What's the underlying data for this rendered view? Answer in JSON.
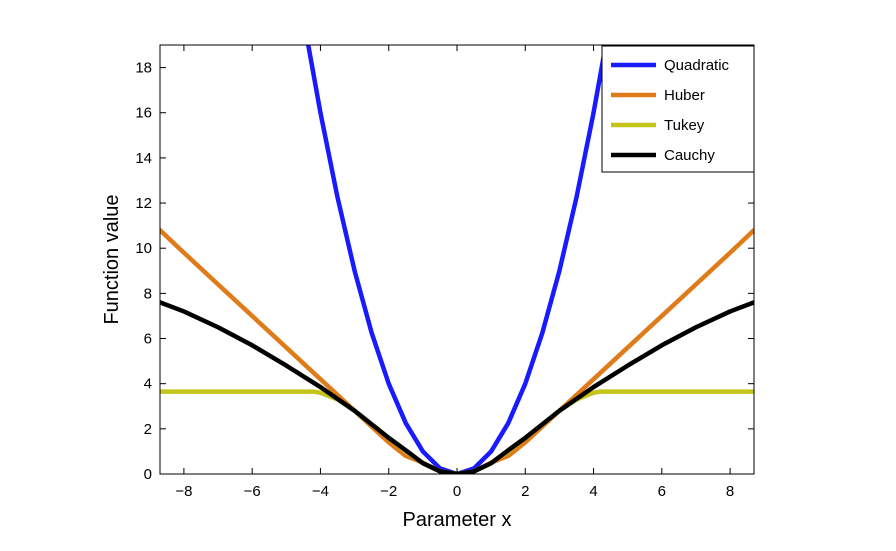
{
  "chart_data": {
    "type": "line",
    "xlabel": "Parameter x",
    "ylabel": "Function value",
    "xlim": [
      -8.7,
      8.7
    ],
    "ylim": [
      0,
      19
    ],
    "xticks": [
      -8,
      -6,
      -4,
      -2,
      0,
      2,
      4,
      6,
      8
    ],
    "xtick_labels": [
      "−8",
      "−6",
      "−4",
      "−2",
      "0",
      "2",
      "4",
      "6",
      "8"
    ],
    "yticks": [
      0,
      2,
      4,
      6,
      8,
      10,
      12,
      14,
      16,
      18
    ],
    "ytick_labels": [
      "0",
      "2",
      "4",
      "6",
      "8",
      "10",
      "12",
      "14",
      "16",
      "18"
    ],
    "grid": false,
    "legend_position": "top-right",
    "series": [
      {
        "name": "Quadratic",
        "color": "#1a1aff",
        "x": [
          -4.4,
          -4.0,
          -3.5,
          -3.0,
          -2.5,
          -2.0,
          -1.5,
          -1.0,
          -0.5,
          0,
          0.5,
          1.0,
          1.5,
          2.0,
          2.5,
          3.0,
          3.5,
          4.0,
          4.4
        ],
        "y": [
          19.36,
          16.0,
          12.25,
          9.0,
          6.25,
          4.0,
          2.25,
          1.0,
          0.25,
          0,
          0.25,
          1.0,
          2.25,
          4.0,
          6.25,
          9.0,
          12.25,
          16.0,
          19.36
        ]
      },
      {
        "name": "Huber",
        "color": "#e07b1a",
        "x": [
          -8.7,
          -8.0,
          -7.0,
          -6.0,
          -5.0,
          -4.0,
          -3.0,
          -2.0,
          -1.5,
          -1.0,
          -0.5,
          0,
          0.5,
          1.0,
          1.5,
          2.0,
          3.0,
          4.0,
          5.0,
          6.0,
          7.0,
          8.0,
          8.7
        ],
        "y": [
          10.8,
          9.8,
          8.4,
          7.0,
          5.6,
          4.2,
          2.8,
          1.4,
          0.8,
          0.5,
          0.125,
          0,
          0.125,
          0.5,
          0.8,
          1.4,
          2.8,
          4.2,
          5.6,
          7.0,
          8.4,
          9.8,
          10.8
        ]
      },
      {
        "name": "Tukey",
        "color": "#c4c41a",
        "x": [
          -8.7,
          -6.0,
          -4.2,
          -4.0,
          -3.5,
          -3.0,
          -2.5,
          -2.0,
          -1.5,
          -1.0,
          -0.5,
          0,
          0.5,
          1.0,
          1.5,
          2.0,
          2.5,
          3.0,
          3.5,
          4.0,
          4.2,
          6.0,
          8.7
        ],
        "y": [
          3.65,
          3.65,
          3.65,
          3.6,
          3.3,
          2.8,
          2.2,
          1.6,
          1.0,
          0.48,
          0.12,
          0,
          0.12,
          0.48,
          1.0,
          1.6,
          2.2,
          2.8,
          3.3,
          3.6,
          3.65,
          3.65,
          3.65
        ]
      },
      {
        "name": "Cauchy",
        "color": "#000000",
        "x": [
          -8.7,
          -8.0,
          -7.0,
          -6.0,
          -5.0,
          -4.0,
          -3.0,
          -2.0,
          -1.5,
          -1.0,
          -0.5,
          0,
          0.5,
          1.0,
          1.5,
          2.0,
          3.0,
          4.0,
          5.0,
          6.0,
          7.0,
          8.0,
          8.7
        ],
        "y": [
          7.6,
          7.2,
          6.5,
          5.7,
          4.8,
          3.85,
          2.8,
          1.6,
          1.05,
          0.48,
          0.12,
          0,
          0.12,
          0.48,
          1.05,
          1.6,
          2.8,
          3.85,
          4.8,
          5.7,
          6.5,
          7.2,
          7.6
        ]
      }
    ]
  }
}
